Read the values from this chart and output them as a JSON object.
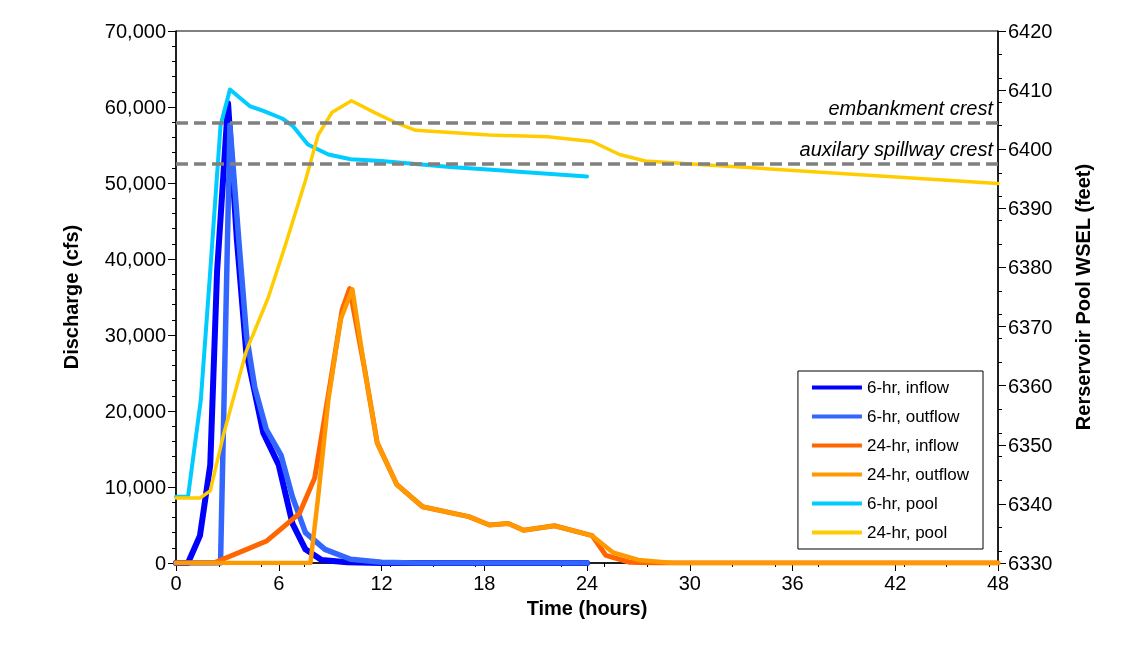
{
  "chart_data": {
    "type": "line",
    "xlabel": "Time (hours)",
    "ylabel": "Discharge (cfs)",
    "y2label": "Rerservoir Pool WSEL (feet)",
    "xlim": [
      0,
      48
    ],
    "xticks": [
      0,
      6,
      12,
      18,
      24,
      30,
      36,
      42,
      48
    ],
    "ylim": [
      0,
      70000
    ],
    "yticks": [
      0,
      {
        "value": 10000,
        "label": "10,000"
      },
      {
        "value": 20000,
        "label": "20,000"
      },
      {
        "value": 30000,
        "label": "30,000"
      },
      {
        "value": 40000,
        "label": "40,000"
      },
      {
        "value": 50000,
        "label": "50,000"
      },
      {
        "value": 60000,
        "label": "60,000"
      },
      {
        "value": 70000,
        "label": "70,000"
      }
    ],
    "y2lim": [
      6330,
      6420
    ],
    "y2ticks": [
      6330,
      6340,
      6350,
      6360,
      6370,
      6380,
      6390,
      6400,
      6410,
      6420
    ],
    "grid": false,
    "legend": "bottom right",
    "marker": "none",
    "line_style": "solid",
    "series": [
      {
        "name": "6-hr, inflow",
        "color": "#0000ff",
        "x": [
          0,
          0.7,
          1.4,
          2.0,
          2.4,
          3.04,
          3.55,
          4.1,
          5.1,
          6.0,
          6.8,
          7.56,
          8.5,
          10,
          12,
          24
        ],
        "values": [
          0,
          0,
          3600,
          12900,
          38400,
          60500,
          42700,
          27800,
          17100,
          12900,
          5200,
          1800,
          400,
          100,
          0,
          0
        ]
      },
      {
        "name": "6-hr, outflow",
        "color": "#3366ff",
        "x": [
          0,
          2.6,
          3.15,
          3.66,
          4.12,
          4.6,
          5.27,
          6.13,
          6.8,
          7.56,
          8.7,
          10.2,
          12,
          14,
          24
        ],
        "values": [
          0,
          0,
          57600,
          42700,
          29900,
          23100,
          17600,
          14200,
          8700,
          4000,
          1800,
          500,
          100,
          0,
          0
        ]
      },
      {
        "name": "24-hr, inflow",
        "color": "#ff6600",
        "x": [
          0,
          2.2,
          5.3,
          7.2,
          8.1,
          8.9,
          9.7,
          10.14,
          11.0,
          11.75,
          12.9,
          14.4,
          17.1,
          18.3,
          19.4,
          20.3,
          22.1,
          24.3,
          25.1,
          26.5,
          28,
          48
        ],
        "values": [
          0,
          0,
          2900,
          6500,
          11200,
          22200,
          33300,
          36100,
          25700,
          15800,
          10300,
          7400,
          6100,
          5000,
          5200,
          4300,
          4900,
          3600,
          1000,
          100,
          0,
          0
        ]
      },
      {
        "name": "24-hr, outflow",
        "color": "#ff9900",
        "x": [
          0,
          7.85,
          8.3,
          8.9,
          9.6,
          10.3,
          11.0,
          11.75,
          12.9,
          14.4,
          17.1,
          18.3,
          19.4,
          20.3,
          22.1,
          24.3,
          25.5,
          27,
          29,
          48
        ],
        "values": [
          0,
          0,
          8700,
          21500,
          32000,
          36000,
          25700,
          15800,
          10300,
          7400,
          6100,
          5000,
          5200,
          4300,
          4900,
          3600,
          1400,
          400,
          0,
          0
        ]
      },
      {
        "name": "6-hr, pool",
        "color": "#00ccff",
        "axis": "y2",
        "x": [
          0,
          0.7,
          1.45,
          2.0,
          2.6,
          3.15,
          4.3,
          5.1,
          6.2,
          6.8,
          7.7,
          8.9,
          10.2,
          12,
          16,
          24
        ],
        "values": [
          6341.2,
          6341.2,
          6357.6,
          6379.4,
          6404,
          6410.1,
          6407.3,
          6406.5,
          6405.2,
          6404,
          6400.8,
          6399.1,
          6398.3,
          6398,
          6397,
          6395.4
        ]
      },
      {
        "name": "24-hr, pool",
        "color": "#ffcc00",
        "axis": "y2",
        "x": [
          0,
          1.4,
          2,
          2.8,
          4.1,
          5.4,
          6.4,
          7.56,
          8.3,
          9.1,
          10.25,
          11.6,
          12.9,
          14,
          18.3,
          21.7,
          24.3,
          25.9,
          27.4,
          30.1,
          48
        ],
        "values": [
          6341,
          6341,
          6342.2,
          6352,
          6365.8,
          6375,
          6383.9,
          6394.7,
          6402.4,
          6406.2,
          6408.2,
          6406.2,
          6404.4,
          6403.2,
          6402.4,
          6402.1,
          6401.3,
          6399.1,
          6398,
          6397.5,
          6394.2
        ]
      }
    ],
    "ref_lines": [
      {
        "axis": "y2",
        "value": 6404.4,
        "label": "embankment crest",
        "color": "#808080",
        "line_style": "dashed"
      },
      {
        "axis": "y2",
        "value": 6397.5,
        "label": "auxilary spillway crest",
        "color": "#808080",
        "line_style": "dashed"
      }
    ]
  }
}
